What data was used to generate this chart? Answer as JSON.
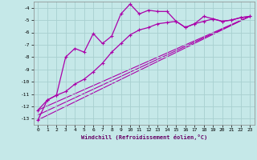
{
  "xlabel": "Windchill (Refroidissement éolien,°C)",
  "background_color": "#c5e8e8",
  "grid_color": "#a8d0d0",
  "line_color": "#aa00aa",
  "xlim": [
    -0.5,
    23.5
  ],
  "ylim": [
    -13.5,
    -3.5
  ],
  "yticks": [
    -13,
    -12,
    -11,
    -10,
    -9,
    -8,
    -7,
    -6,
    -5,
    -4
  ],
  "xticks": [
    0,
    1,
    2,
    3,
    4,
    5,
    6,
    7,
    8,
    9,
    10,
    11,
    12,
    13,
    14,
    15,
    16,
    17,
    18,
    19,
    20,
    21,
    22,
    23
  ],
  "line1_x": [
    0,
    1,
    2,
    3,
    4,
    5,
    6,
    7,
    8,
    9,
    10,
    11,
    12,
    13,
    14,
    15,
    16,
    17,
    18,
    19,
    20,
    21,
    22,
    23
  ],
  "line1_y": [
    -12.3,
    -11.5,
    -11.1,
    -8.0,
    -7.3,
    -7.6,
    -6.1,
    -6.9,
    -6.3,
    -4.5,
    -3.7,
    -4.5,
    -4.2,
    -4.3,
    -4.3,
    -5.1,
    -5.6,
    -5.3,
    -4.7,
    -4.9,
    -5.1,
    -5.0,
    -4.8,
    -4.7
  ],
  "line2_x": [
    0,
    1,
    2,
    3,
    4,
    5,
    6,
    7,
    8,
    9,
    10,
    11,
    12,
    13,
    14,
    15,
    16,
    17,
    18,
    19,
    20,
    21,
    22,
    23
  ],
  "line2_y": [
    -13.1,
    -11.5,
    -11.1,
    -10.8,
    -10.2,
    -9.8,
    -9.2,
    -8.5,
    -7.6,
    -6.9,
    -6.2,
    -5.8,
    -5.6,
    -5.3,
    -5.2,
    -5.1,
    -5.6,
    -5.3,
    -5.1,
    -4.9,
    -5.1,
    -5.0,
    -4.8,
    -4.7
  ],
  "line3_x": [
    0,
    23
  ],
  "line3_y": [
    -13.1,
    -4.7
  ],
  "line4_x": [
    0,
    23
  ],
  "line4_y": [
    -12.3,
    -4.7
  ],
  "line5_x": [
    0,
    23
  ],
  "line5_y": [
    -12.7,
    -4.7
  ]
}
